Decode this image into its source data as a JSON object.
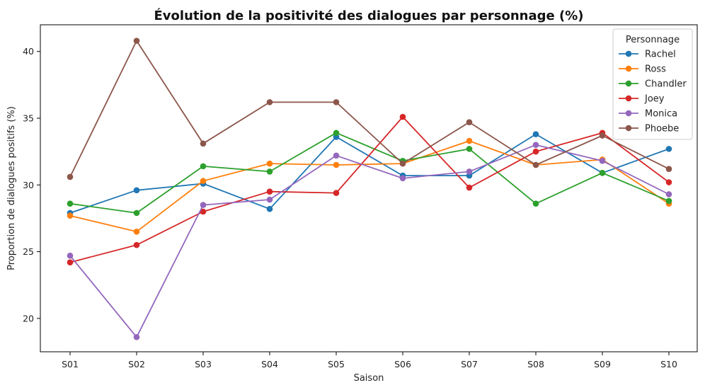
{
  "chart_data": {
    "type": "line",
    "title": "Évolution de la positivité des dialogues par personnage (%)",
    "xlabel": "Saison",
    "ylabel": "Proportion de dialogues positifs (%)",
    "categories": [
      "S01",
      "S02",
      "S03",
      "S04",
      "S05",
      "S06",
      "S07",
      "S08",
      "S09",
      "S10"
    ],
    "yticks": [
      20,
      25,
      30,
      35,
      40
    ],
    "ylim": [
      17.5,
      42.0
    ],
    "grid": false,
    "legend": {
      "title": "Personnage",
      "placement": "top-right"
    },
    "series": [
      {
        "name": "Rachel",
        "color": "#1f77b4",
        "values": [
          27.9,
          29.6,
          30.1,
          28.2,
          33.6,
          30.7,
          30.7,
          33.8,
          30.9,
          32.7
        ]
      },
      {
        "name": "Ross",
        "color": "#ff7f0e",
        "values": [
          27.7,
          26.5,
          30.3,
          31.6,
          31.5,
          31.6,
          33.3,
          31.5,
          31.9,
          28.6
        ]
      },
      {
        "name": "Chandler",
        "color": "#2ca02c",
        "values": [
          28.6,
          27.9,
          31.4,
          31.0,
          33.9,
          31.8,
          32.7,
          28.6,
          30.9,
          28.8
        ]
      },
      {
        "name": "Joey",
        "color": "#d62728",
        "values": [
          24.2,
          25.5,
          28.0,
          29.5,
          29.4,
          35.1,
          29.8,
          32.5,
          33.9,
          30.2
        ]
      },
      {
        "name": "Monica",
        "color": "#9467bd",
        "values": [
          24.7,
          18.6,
          28.5,
          28.9,
          32.2,
          30.5,
          31.0,
          33.0,
          31.8,
          29.3
        ]
      },
      {
        "name": "Phoebe",
        "color": "#8c564b",
        "values": [
          30.6,
          40.8,
          33.1,
          36.2,
          36.2,
          31.6,
          34.7,
          31.5,
          33.7,
          31.2
        ]
      }
    ]
  }
}
